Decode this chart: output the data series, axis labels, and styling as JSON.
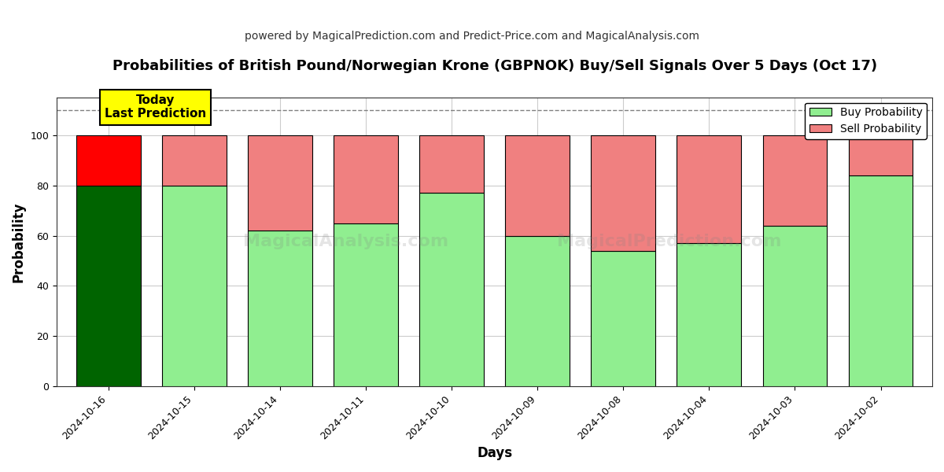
{
  "title": "Probabilities of British Pound/Norwegian Krone (GBPNOK) Buy/Sell Signals Over 5 Days (Oct 17)",
  "subtitle": "powered by MagicalPrediction.com and Predict-Price.com and MagicalAnalysis.com",
  "xlabel": "Days",
  "ylabel": "Probability",
  "categories": [
    "2024-10-16",
    "2024-10-15",
    "2024-10-14",
    "2024-10-11",
    "2024-10-10",
    "2024-10-09",
    "2024-10-08",
    "2024-10-04",
    "2024-10-03",
    "2024-10-02"
  ],
  "buy_values": [
    80,
    80,
    62,
    65,
    77,
    60,
    54,
    57,
    64,
    84
  ],
  "sell_values": [
    20,
    20,
    38,
    35,
    23,
    40,
    46,
    43,
    36,
    16
  ],
  "today_buy_color": "#006400",
  "today_sell_color": "#FF0000",
  "buy_color": "#90EE90",
  "sell_color": "#F08080",
  "today_annotation": "Today\nLast Prediction",
  "ylim": [
    0,
    115
  ],
  "yticks": [
    0,
    20,
    40,
    60,
    80,
    100
  ],
  "dashed_line_y": 110,
  "legend_buy_label": "Buy Probability",
  "legend_sell_label": "Sell Probability",
  "background_color": "#ffffff",
  "grid_color": "#cccccc",
  "bar_edge_color": "#000000",
  "bar_width": 0.75,
  "title_fontsize": 13,
  "subtitle_fontsize": 10,
  "axis_label_fontsize": 12,
  "tick_fontsize": 9
}
